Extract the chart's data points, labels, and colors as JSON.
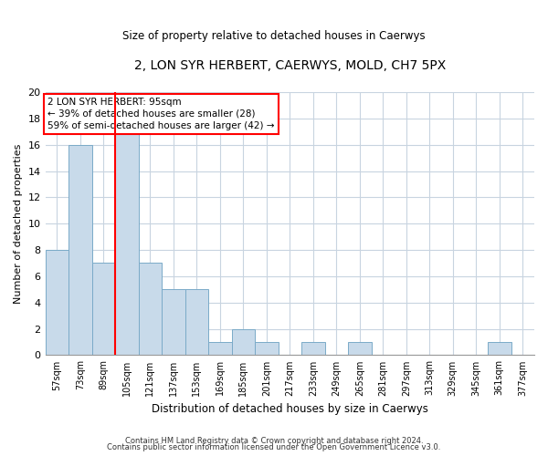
{
  "title": "2, LON SYR HERBERT, CAERWYS, MOLD, CH7 5PX",
  "subtitle": "Size of property relative to detached houses in Caerwys",
  "xlabel": "Distribution of detached houses by size in Caerwys",
  "ylabel": "Number of detached properties",
  "bar_color": "#c8daea",
  "bar_edgecolor": "#7aaac8",
  "bin_labels": [
    "57sqm",
    "73sqm",
    "89sqm",
    "105sqm",
    "121sqm",
    "137sqm",
    "153sqm",
    "169sqm",
    "185sqm",
    "201sqm",
    "217sqm",
    "233sqm",
    "249sqm",
    "265sqm",
    "281sqm",
    "297sqm",
    "313sqm",
    "329sqm",
    "345sqm",
    "361sqm",
    "377sqm"
  ],
  "counts": [
    8,
    16,
    7,
    17,
    7,
    5,
    5,
    1,
    2,
    1,
    0,
    1,
    0,
    1,
    0,
    0,
    0,
    0,
    0,
    1,
    0
  ],
  "ylim": [
    0,
    20
  ],
  "yticks": [
    0,
    2,
    4,
    6,
    8,
    10,
    12,
    14,
    16,
    18,
    20
  ],
  "vline_position": 2.5,
  "annotation_line1": "2 LON SYR HERBERT: 95sqm",
  "annotation_line2": "← 39% of detached houses are smaller (28)",
  "annotation_line3": "59% of semi-detached houses are larger (42) →",
  "footer1": "Contains HM Land Registry data © Crown copyright and database right 2024.",
  "footer2": "Contains public sector information licensed under the Open Government Licence v3.0.",
  "background_color": "#ffffff",
  "grid_color": "#c8d4e0",
  "title_fontsize": 10,
  "subtitle_fontsize": 8.5,
  "xlabel_fontsize": 8.5,
  "ylabel_fontsize": 8,
  "tick_fontsize": 7,
  "annotation_fontsize": 7.5,
  "footer_fontsize": 6
}
